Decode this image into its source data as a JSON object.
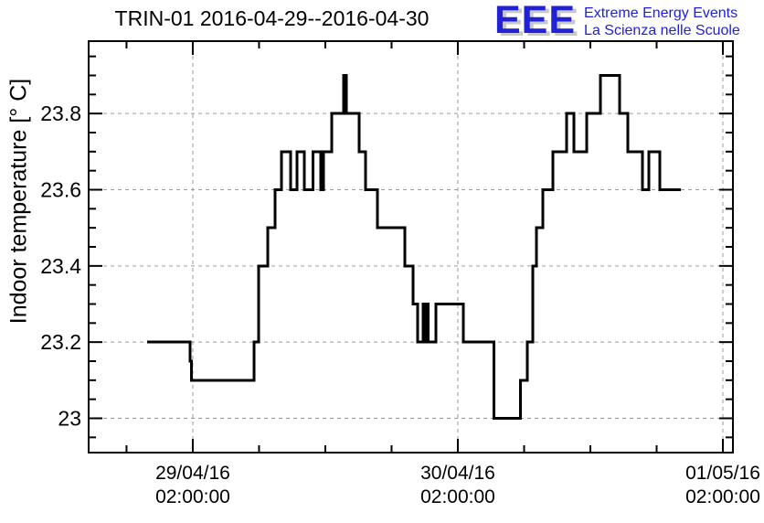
{
  "header": {
    "title": "TRIN-01 2016-04-29--2016-04-30"
  },
  "logo": {
    "acronym": "EEE",
    "line1": "Extreme Energy Events",
    "line2": "La Scienza nelle Scuole",
    "color": "#2121d6",
    "shadow_color": "#c8c8c8"
  },
  "colors": {
    "line": "#000000",
    "grid": "#9a9a9a",
    "frame": "#000000",
    "text": "#000000"
  },
  "chart_data": {
    "type": "line",
    "style": "step-horizontal",
    "title": "TRIN-01 2016-04-29--2016-04-30",
    "ylabel": "Indoor temperature [° C]",
    "xlabel": "",
    "x_unit": "hours since 2016-04-29 02:00:00",
    "xlim": [
      -9.43,
      48.91
    ],
    "ylim": [
      22.91,
      23.99
    ],
    "grid": true,
    "legend": "none",
    "y_major_ticks": [
      23,
      23.2,
      23.4,
      23.6,
      23.8
    ],
    "y_minor_step": 0.05,
    "x_minor_step_hours": 6,
    "x_major_ticks": [
      {
        "t": 0,
        "date": "29/04/16",
        "time": "02:00:00"
      },
      {
        "t": 24,
        "date": "30/04/16",
        "time": "02:00:00"
      },
      {
        "t": 48,
        "date": "01/05/16",
        "time": "02:00:00"
      }
    ],
    "series": [
      {
        "name": "indoor-temperature",
        "segments_t_start_t_end_value": [
          [
            -4.15,
            -0.25,
            23.2
          ],
          [
            -0.25,
            -0.1,
            23.15
          ],
          [
            -0.1,
            5.55,
            23.1
          ],
          [
            5.55,
            5.95,
            23.2
          ],
          [
            5.95,
            6.8,
            23.4
          ],
          [
            6.8,
            7.45,
            23.5
          ],
          [
            7.45,
            8.05,
            23.6
          ],
          [
            8.05,
            8.85,
            23.7
          ],
          [
            8.85,
            9.45,
            23.6
          ],
          [
            9.45,
            10.1,
            23.7
          ],
          [
            10.1,
            10.9,
            23.6
          ],
          [
            10.9,
            11.6,
            23.7
          ],
          [
            11.6,
            11.85,
            23.6
          ],
          [
            11.85,
            12.6,
            23.7
          ],
          [
            12.6,
            13.65,
            23.8
          ],
          [
            13.65,
            13.9,
            23.9
          ],
          [
            13.9,
            15.05,
            23.8
          ],
          [
            15.05,
            15.65,
            23.7
          ],
          [
            15.65,
            16.7,
            23.6
          ],
          [
            16.7,
            19.2,
            23.5
          ],
          [
            19.2,
            19.95,
            23.4
          ],
          [
            19.95,
            20.35,
            23.3
          ],
          [
            20.35,
            20.85,
            23.2
          ],
          [
            20.85,
            21.0,
            23.3
          ],
          [
            21.0,
            21.1,
            23.2
          ],
          [
            21.1,
            21.3,
            23.3
          ],
          [
            21.3,
            22.0,
            23.2
          ],
          [
            22.0,
            24.5,
            23.3
          ],
          [
            24.5,
            27.25,
            23.2
          ],
          [
            27.25,
            29.65,
            23.0
          ],
          [
            29.65,
            30.3,
            23.1
          ],
          [
            30.3,
            30.8,
            23.2
          ],
          [
            30.8,
            31.1,
            23.4
          ],
          [
            31.1,
            31.7,
            23.5
          ],
          [
            31.7,
            32.6,
            23.6
          ],
          [
            32.6,
            33.85,
            23.7
          ],
          [
            33.85,
            34.5,
            23.8
          ],
          [
            34.5,
            35.65,
            23.7
          ],
          [
            35.65,
            36.9,
            23.8
          ],
          [
            36.9,
            38.65,
            23.9
          ],
          [
            38.65,
            39.4,
            23.8
          ],
          [
            39.4,
            40.7,
            23.7
          ],
          [
            40.7,
            41.3,
            23.6
          ],
          [
            41.3,
            42.3,
            23.7
          ],
          [
            42.3,
            44.2,
            23.6
          ]
        ]
      }
    ]
  }
}
